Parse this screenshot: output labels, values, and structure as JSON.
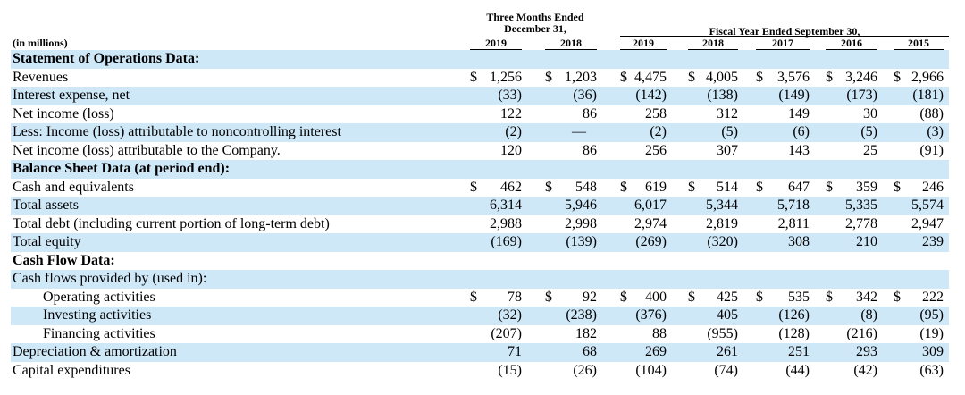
{
  "header": {
    "group1": "Three Months Ended\nDecember 31,",
    "group2": "Fiscal Year Ended September 30,",
    "units_label": "(in millions)",
    "years": [
      "2019",
      "2018",
      "2019",
      "2018",
      "2017",
      "2016",
      "2015"
    ]
  },
  "rows": [
    {
      "label": "Statement of Operations Data:",
      "type": "section",
      "values": []
    },
    {
      "label": "Revenues",
      "type": "data",
      "dollar": true,
      "dollar_style": "inline",
      "values": [
        "1,256",
        "1,203",
        "4,475",
        "4,005",
        "3,576",
        "3,246",
        "2,966"
      ]
    },
    {
      "label": "Interest expense, net",
      "type": "data",
      "values": [
        "(33)",
        "(36)",
        "(142)",
        "(138)",
        "(149)",
        "(173)",
        "(181)"
      ]
    },
    {
      "label": "Net income (loss)",
      "type": "data",
      "values": [
        "122",
        "86",
        "258",
        "312",
        "149",
        "30",
        "(88)"
      ]
    },
    {
      "label": "Less: Income (loss) attributable to noncontrolling interest",
      "type": "data",
      "values": [
        "(2)",
        "—",
        "(2)",
        "(5)",
        "(6)",
        "(5)",
        "(3)"
      ]
    },
    {
      "label": "Net income (loss) attributable to the Company.",
      "type": "data",
      "values": [
        "120",
        "86",
        "256",
        "307",
        "143",
        "25",
        "(91)"
      ]
    },
    {
      "label": "Balance Sheet Data (at period end):",
      "type": "section",
      "values": []
    },
    {
      "label": "Cash and equivalents",
      "type": "data",
      "dollar": true,
      "values": [
        "462",
        "548",
        "619",
        "514",
        "647",
        "359",
        "246"
      ]
    },
    {
      "label": "Total assets",
      "type": "data",
      "values": [
        "6,314",
        "5,946",
        "6,017",
        "5,344",
        "5,718",
        "5,335",
        "5,574"
      ]
    },
    {
      "label": "Total debt (including current portion of long-term debt)",
      "type": "data",
      "values": [
        "2,988",
        "2,998",
        "2,974",
        "2,819",
        "2,811",
        "2,778",
        "2,947"
      ]
    },
    {
      "label": "Total equity",
      "type": "data",
      "values": [
        "(169)",
        "(139)",
        "(269)",
        "(320)",
        "308",
        "210",
        "239"
      ]
    },
    {
      "label": "Cash Flow Data:",
      "type": "section",
      "values": []
    },
    {
      "label": "Cash flows provided by (used in):",
      "type": "data",
      "values": []
    },
    {
      "label": "Operating activities",
      "type": "indent",
      "dollar": true,
      "values": [
        "78",
        "92",
        "400",
        "425",
        "535",
        "342",
        "222"
      ]
    },
    {
      "label": "Investing activities",
      "type": "indent",
      "values": [
        "(32)",
        "(238)",
        "(376)",
        "405",
        "(126)",
        "(8)",
        "(95)"
      ]
    },
    {
      "label": "Financing activities",
      "type": "indent",
      "values": [
        "(207)",
        "182",
        "88",
        "(955)",
        "(128)",
        "(216)",
        "(19)"
      ]
    },
    {
      "label": "Depreciation & amortization",
      "type": "data",
      "values": [
        "71",
        "68",
        "269",
        "261",
        "251",
        "293",
        "309"
      ]
    },
    {
      "label": "Capital expenditures",
      "type": "data",
      "values": [
        "(15)",
        "(26)",
        "(104)",
        "(74)",
        "(44)",
        "(42)",
        "(63)"
      ]
    }
  ],
  "currency_symbol": "$"
}
